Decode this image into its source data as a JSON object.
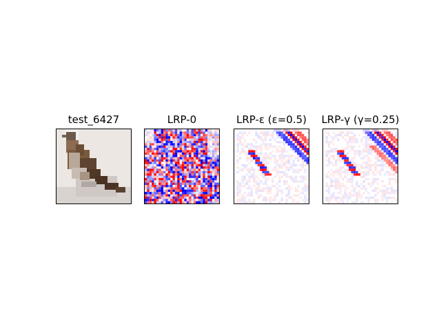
{
  "figure": {
    "panels": [
      {
        "title": "test_6427",
        "kind": "input-image"
      },
      {
        "title": "LRP-0",
        "kind": "heatmap-noisy"
      },
      {
        "title": "LRP-ε (ε=0.5)",
        "kind": "heatmap-diagonal"
      },
      {
        "title": "LRP-γ (γ=0.25)",
        "kind": "heatmap-diagonal-wide"
      }
    ],
    "colormap": {
      "positive": "#cc0000",
      "negative": "#0000cc",
      "neutral": "#ffffff"
    }
  }
}
